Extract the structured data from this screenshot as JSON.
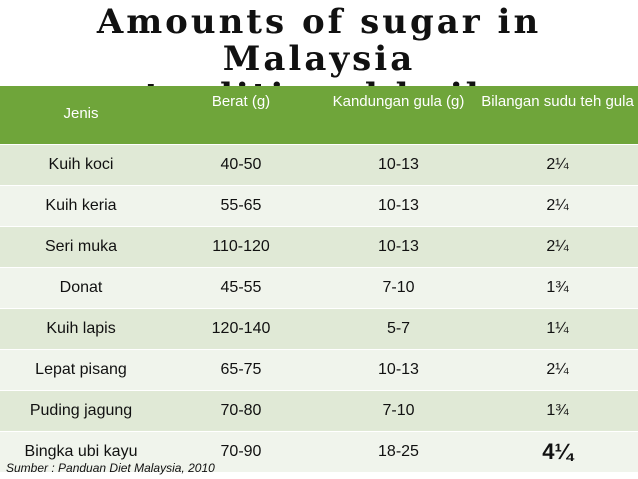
{
  "title": {
    "line1": "Amounts of sugar in Malaysia",
    "line2": "traditional kuih"
  },
  "table": {
    "headers": [
      "Jenis",
      "Berat (g)",
      "Kandungan gula (g)",
      "Bilangan sudu teh gula"
    ],
    "rows": [
      [
        "Kuih koci",
        "40-50",
        "10-13",
        "2¼"
      ],
      [
        "Kuih keria",
        "55-65",
        "10-13",
        "2¼"
      ],
      [
        "Seri muka",
        "110-120",
        "10-13",
        "2¼"
      ],
      [
        "Donat",
        "45-55",
        "7-10",
        "1¾"
      ],
      [
        "Kuih lapis",
        "120-140",
        "5-7",
        "1¼"
      ],
      [
        "Lepat pisang",
        "65-75",
        "10-13",
        "2¼"
      ],
      [
        "Puding jagung",
        "70-80",
        "7-10",
        "1¾"
      ],
      [
        "Bingka ubi kayu",
        "70-90",
        "18-25",
        "4¼"
      ]
    ]
  },
  "source": "Sumber : Panduan Diet Malaysia, 2010",
  "colors": {
    "header_bg": "#6fa53a",
    "row_odd": "#e0e9d6",
    "row_even": "#f0f4ec"
  }
}
